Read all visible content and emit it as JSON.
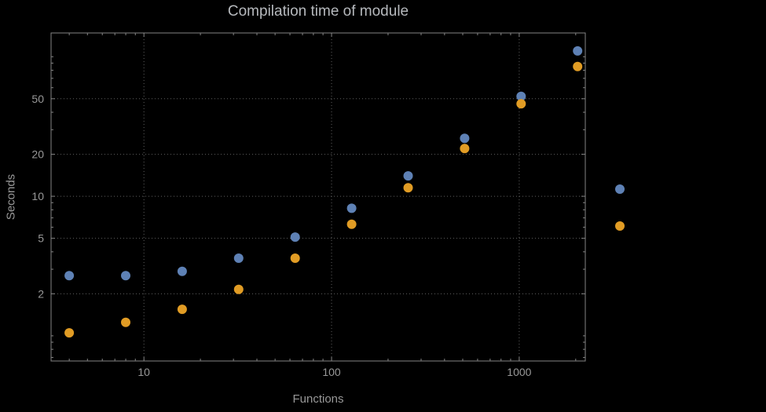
{
  "title": "Compilation time of module",
  "colors": {
    "background": "#000000",
    "grid": "#5f5f5f",
    "frame": "#858585",
    "tick_labels": "#989898",
    "axis_labels": "#989898",
    "title": "#b6b9bd",
    "series_blue": "#5e81b5",
    "series_orange": "#e19c24"
  },
  "chart_data": {
    "type": "scatter",
    "title": "Compilation time of module",
    "xlabel": "Functions",
    "ylabel": "Seconds",
    "x_scale": "log",
    "y_scale": "log",
    "xlim": [
      3.2,
      2250
    ],
    "ylim": [
      0.66,
      148
    ],
    "x_ticks": [
      10,
      100,
      1000
    ],
    "x_tick_labels": [
      "10",
      "100",
      "1000"
    ],
    "y_ticks": [
      2,
      5,
      10,
      20,
      50
    ],
    "y_tick_labels": [
      "2",
      "5",
      "10",
      "20",
      "50"
    ],
    "grid": "dotted",
    "legend_position": "right-outside",
    "x": [
      4,
      8,
      16,
      32,
      64,
      128,
      256,
      512,
      1024,
      2048
    ],
    "series": [
      {
        "name": "blue",
        "color": "#5e81b5",
        "values": [
          2.7,
          2.7,
          2.9,
          3.6,
          5.1,
          8.2,
          14,
          26,
          52,
          110
        ]
      },
      {
        "name": "orange",
        "color": "#e19c24",
        "values": [
          1.05,
          1.25,
          1.55,
          2.15,
          3.6,
          6.3,
          11.5,
          22,
          46,
          85
        ]
      }
    ]
  }
}
